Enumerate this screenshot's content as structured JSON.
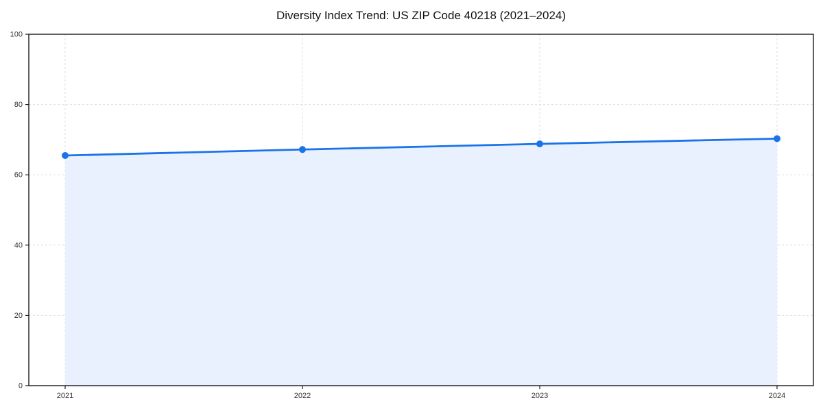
{
  "chart_data": {
    "type": "area",
    "title": "Diversity Index Trend: US ZIP Code 40218 (2021–2024)",
    "x": [
      2021,
      2022,
      2023,
      2024
    ],
    "xticklabels": [
      "2021",
      "2022",
      "2023",
      "2024"
    ],
    "values": [
      65.5,
      67.2,
      68.8,
      70.3
    ],
    "xlabel": "",
    "ylabel": "",
    "ylim": [
      0,
      100
    ],
    "yticks": [
      0,
      20,
      40,
      60,
      80,
      100
    ],
    "yticklabels": [
      "0",
      "20",
      "40",
      "60",
      "80",
      "100"
    ],
    "grid": true,
    "legend": false,
    "colors": {
      "line": "#1a73e8",
      "marker": "#1a73e8",
      "area_fill": "#e8f1fd",
      "gridline": "#dedede",
      "axis": "#1b1b1b",
      "tick_label": "#333333",
      "title": "#111111",
      "background": "#ffffff"
    }
  }
}
